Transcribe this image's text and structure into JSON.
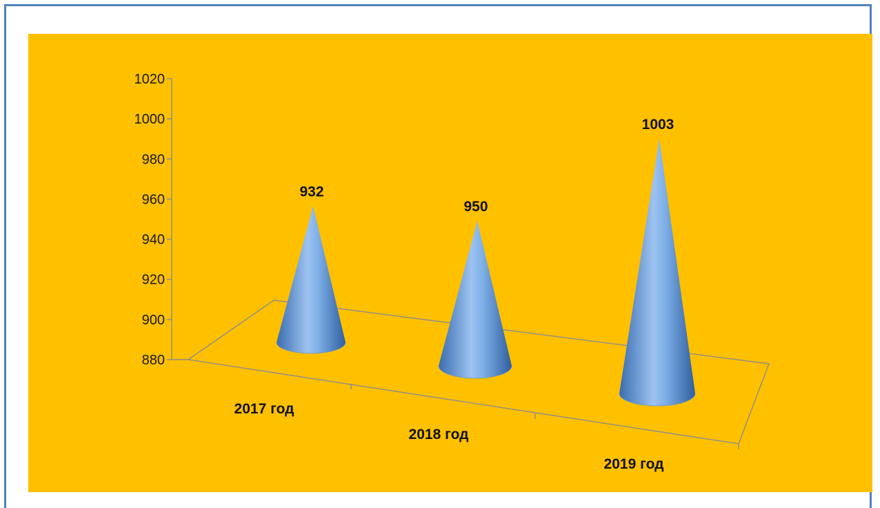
{
  "colors": {
    "frame_border": "#4f81bd",
    "chart_background": "#ffc000",
    "cone_light": "#9dc3f0",
    "cone_dark": "#2f5f9e",
    "axis_line": "#7f7f7f"
  },
  "chart_data": {
    "type": "bar",
    "style": "3d-cone",
    "categories": [
      "2017 год",
      "2018 год",
      "2019 год"
    ],
    "values": [
      932,
      950,
      1003
    ],
    "data_labels": [
      "932",
      "950",
      "1003"
    ],
    "title": "",
    "xlabel": "",
    "ylabel": "",
    "ylim": [
      880,
      1020
    ],
    "yticks": [
      "880",
      "900",
      "920",
      "940",
      "960",
      "980",
      "1000",
      "1020"
    ],
    "grid": false,
    "legend": false
  }
}
